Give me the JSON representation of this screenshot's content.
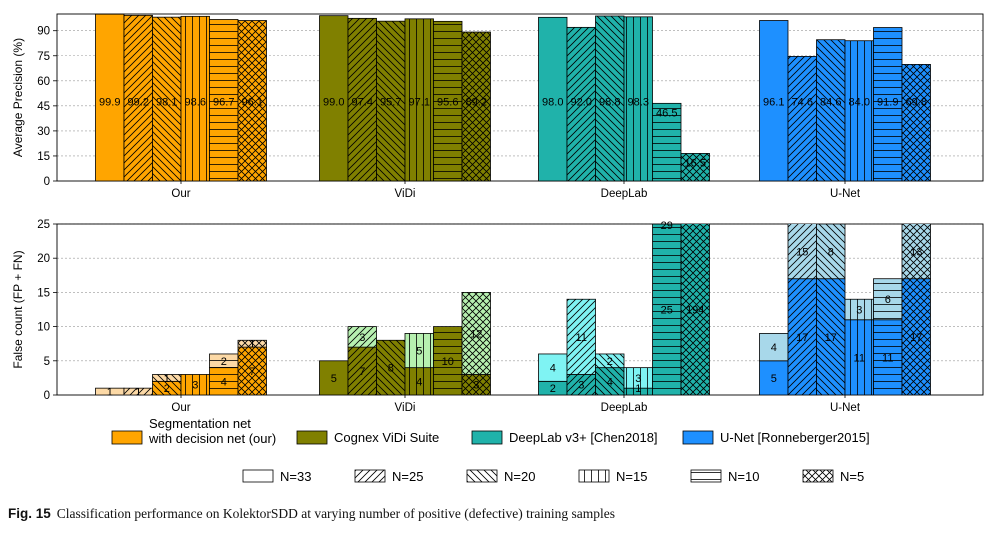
{
  "caption": {
    "label": "Fig. 15",
    "text": "Classification performance on KolektorSDD at varying number of positive (defective) training samples"
  },
  "chart_data": [
    {
      "type": "bar",
      "ylabel": "Average Precision (%)",
      "ylim": [
        0,
        100
      ],
      "yticks": [
        0,
        15,
        30,
        45,
        60,
        75,
        90
      ],
      "grid": true,
      "groups": [
        "Our",
        "ViDi",
        "DeepLab",
        "U-Net"
      ],
      "subgroups": [
        "N=33",
        "N=25",
        "N=20",
        "N=15",
        "N=10",
        "N=5"
      ],
      "values": [
        [
          99.9,
          99.2,
          98.1,
          98.6,
          96.7,
          96.1
        ],
        [
          99.0,
          97.4,
          95.7,
          97.1,
          95.6,
          89.2
        ],
        [
          98.0,
          92.0,
          98.8,
          98.3,
          46.5,
          16.5
        ],
        [
          96.1,
          74.6,
          84.6,
          84.0,
          91.9,
          69.8
        ]
      ],
      "labels": [
        [
          "99.9",
          "99.2",
          "98.1",
          "98.6",
          "96.7",
          "96.1"
        ],
        [
          "99.0",
          "97.4",
          "95.7",
          "97.1",
          "95.6",
          "89.2"
        ],
        [
          "98.0",
          "92.0",
          "98.8",
          "98.3",
          "46.5",
          "16.5"
        ],
        [
          "96.1",
          "74.6",
          "84.6",
          "84.0",
          "91.9",
          "69.8"
        ]
      ]
    },
    {
      "type": "bar",
      "stacked": true,
      "ylabel": "False count (FP + FN)",
      "ylim": [
        0,
        25
      ],
      "yticks": [
        0,
        5,
        10,
        15,
        20,
        25
      ],
      "grid": true,
      "groups": [
        "Our",
        "ViDi",
        "DeepLab",
        "U-Net"
      ],
      "subgroups": [
        "N=33",
        "N=25",
        "N=20",
        "N=15",
        "N=10",
        "N=5"
      ],
      "fn": [
        [
          0,
          0,
          2,
          3,
          4,
          7
        ],
        [
          5,
          7,
          8,
          4,
          10,
          3
        ],
        [
          2,
          3,
          4,
          1,
          25,
          194
        ],
        [
          5,
          17,
          17,
          11,
          11,
          17
        ]
      ],
      "fp": [
        [
          1,
          1,
          1,
          0,
          2,
          1
        ],
        [
          0,
          3,
          0,
          5,
          0,
          12
        ],
        [
          4,
          11,
          2,
          3,
          29,
          0
        ],
        [
          4,
          15,
          8,
          3,
          6,
          13
        ]
      ],
      "fn_labels": [
        [
          "",
          "",
          "2",
          "3",
          "4",
          "7"
        ],
        [
          "5",
          "7",
          "8",
          "4",
          "10",
          "3"
        ],
        [
          "2",
          "3",
          "4",
          "1",
          "25",
          "194"
        ],
        [
          "5",
          "17",
          "17",
          "11",
          "11",
          "17"
        ]
      ],
      "fp_labels": [
        [
          "1",
          "1",
          "1",
          "",
          "2",
          "1"
        ],
        [
          "",
          "3",
          "",
          "5",
          "",
          "12"
        ],
        [
          "4",
          "11",
          "2",
          "3",
          "29",
          ""
        ],
        [
          "4",
          "15",
          "8",
          "3",
          "6",
          "13"
        ]
      ]
    }
  ],
  "legend": {
    "methods": [
      {
        "name": "Segmentation net\nwith decision net (our)",
        "color": "#FFA500"
      },
      {
        "name": "Cognex ViDi Suite",
        "color": "#808000"
      },
      {
        "name": "DeepLab v3+ [Chen2018]",
        "color": "#20B2AA"
      },
      {
        "name": "U-Net [Ronneberger2015]",
        "color": "#1E90FF"
      }
    ],
    "patterns": [
      {
        "name": "N=33",
        "pattern": "none"
      },
      {
        "name": "N=25",
        "pattern": "diag-right"
      },
      {
        "name": "N=20",
        "pattern": "diag-left"
      },
      {
        "name": "N=15",
        "pattern": "vertical"
      },
      {
        "name": "N=10",
        "pattern": "horizontal"
      },
      {
        "name": "N=5",
        "pattern": "crosshatch"
      }
    ]
  },
  "colors": {
    "fp_light": [
      "#FCD9A6",
      "#B7F0B0",
      "#7FF3F3",
      "#A8D8EA"
    ]
  }
}
